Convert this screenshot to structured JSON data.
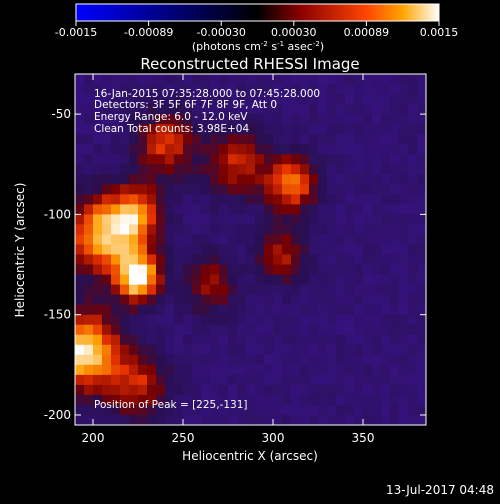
{
  "colorbar": {
    "ticks": [
      "-0.0015",
      "-0.00089",
      "-0.00030",
      "0.00030",
      "0.00089",
      "0.0015"
    ],
    "units": "(photons cm",
    "units_exp1": "-2",
    "units_mid": " s",
    "units_exp2": "-1",
    "units_end": " asec",
    "units_exp3": "-2",
    "units_close": ")"
  },
  "annotations": {
    "time": "16-Jan-2015 07:35:28.000 to 07:45:28.000",
    "detectors": "Detectors: 3F 5F 6F 7F 8F 9F, Att 0",
    "energy": "Energy Range: 6.0 - 12.0 keV",
    "clean": "Clean     Total counts: 3.98E+04",
    "peak": "Position of Peak = [225,-131]"
  },
  "footer": {
    "date": "13-Jul-2017 04:48"
  },
  "chart_data": {
    "type": "heatmap",
    "title": "Reconstructed RHESSI Image",
    "xlabel": "Heliocentric X (arcsec)",
    "ylabel": "Heliocentric Y (arcsec)",
    "xlim": [
      190,
      385
    ],
    "ylim": [
      -205,
      -30
    ],
    "xticks": [
      200,
      250,
      300,
      350
    ],
    "yticks": [
      -50,
      -100,
      -150,
      -200
    ],
    "clim": [
      -0.0015,
      0.0015
    ],
    "colormap": [
      "#0000ff",
      "#000000",
      "#8b0000",
      "#ff4500",
      "#ffa500",
      "#ffffff"
    ],
    "peak": {
      "x": 225,
      "y": -131
    },
    "sources": [
      {
        "x": 225,
        "y": -131,
        "value": 0.0015,
        "sigma": 9
      },
      {
        "x": 205,
        "y": -110,
        "value": 0.0012,
        "sigma": 14
      },
      {
        "x": 195,
        "y": -168,
        "value": 0.0014,
        "sigma": 14
      },
      {
        "x": 225,
        "y": -100,
        "value": 0.0009,
        "sigma": 10
      },
      {
        "x": 240,
        "y": -65,
        "value": 0.0007,
        "sigma": 12
      },
      {
        "x": 310,
        "y": -85,
        "value": 0.001,
        "sigma": 10
      },
      {
        "x": 280,
        "y": -75,
        "value": 0.0006,
        "sigma": 12
      },
      {
        "x": 265,
        "y": -135,
        "value": 0.0005,
        "sigma": 10
      },
      {
        "x": 305,
        "y": -120,
        "value": 0.0005,
        "sigma": 10
      },
      {
        "x": 225,
        "y": -185,
        "value": 0.0006,
        "sigma": 12
      }
    ],
    "background": -0.00035
  }
}
